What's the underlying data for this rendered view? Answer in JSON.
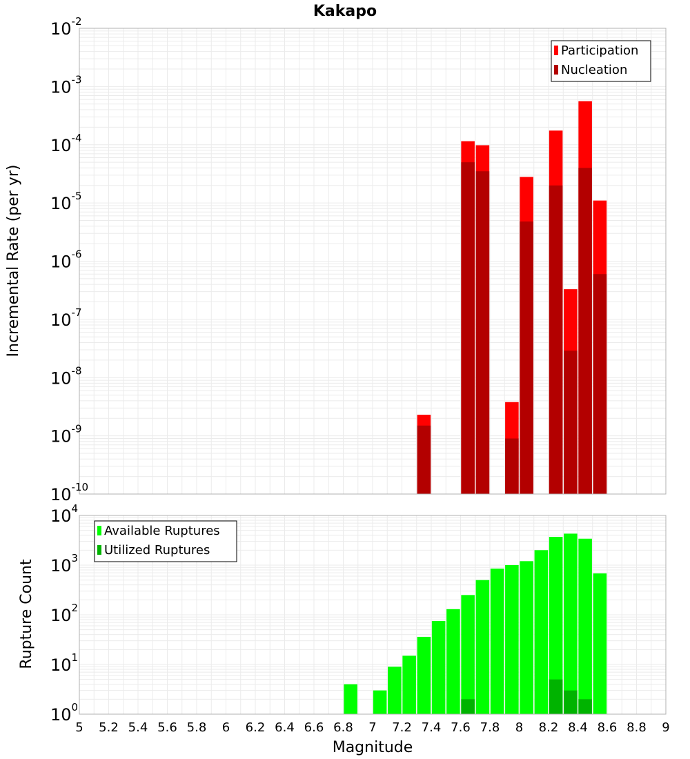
{
  "chart_data": [
    {
      "type": "bar",
      "title": "Kakapo",
      "xlabel": "",
      "ylabel": "Incremental Rate (per yr)",
      "yscale": "log",
      "ylim_exponents": [
        -10,
        -2
      ],
      "xlim": [
        5,
        9
      ],
      "grid": true,
      "legend_position": "top-right",
      "x": [
        7.35,
        7.65,
        7.75,
        7.95,
        8.05,
        8.25,
        8.35,
        8.45,
        8.55
      ],
      "series": [
        {
          "name": "Participation",
          "color": "#ff0000",
          "values": [
            2.3e-09,
            0.000115,
            9.8e-05,
            3.8e-09,
            2.8e-05,
            0.000175,
            3.3e-07,
            0.00056,
            1.1e-05
          ]
        },
        {
          "name": "Nucleation",
          "color": "#b30000",
          "values": [
            1.5e-09,
            5e-05,
            3.5e-05,
            9e-10,
            4.8e-06,
            2e-05,
            2.9e-08,
            4e-05,
            6e-07
          ]
        }
      ]
    },
    {
      "type": "bar",
      "title": "",
      "xlabel": "Magnitude",
      "ylabel": "Rupture Count",
      "yscale": "log",
      "ylim_exponents": [
        0,
        4
      ],
      "xlim": [
        5,
        9
      ],
      "grid": true,
      "legend_position": "top-left",
      "x": [
        6.85,
        6.95,
        7.05,
        7.15,
        7.25,
        7.35,
        7.45,
        7.55,
        7.65,
        7.75,
        7.85,
        7.95,
        8.05,
        8.15,
        8.25,
        8.35,
        8.45,
        8.55
      ],
      "series": [
        {
          "name": "Available Ruptures",
          "color": "#00ff00",
          "values": [
            4,
            1,
            3,
            9,
            15,
            36,
            75,
            130,
            250,
            500,
            850,
            1000,
            1200,
            2000,
            3700,
            4300,
            3400,
            680
          ]
        },
        {
          "name": "Utilized Ruptures",
          "color": "#00b300",
          "values": [
            0,
            0,
            0,
            0,
            0,
            1,
            0,
            0,
            2,
            1,
            0,
            1,
            1,
            0,
            5,
            3,
            2,
            1
          ]
        }
      ]
    }
  ],
  "x_ticks": [
    "5",
    "5.2",
    "5.4",
    "5.6",
    "5.8",
    "6",
    "6.2",
    "6.4",
    "6.6",
    "6.8",
    "7",
    "7.2",
    "7.4",
    "7.6",
    "7.8",
    "8",
    "8.2",
    "8.4",
    "8.6",
    "8.8",
    "9"
  ],
  "colors": {
    "grid": "#ebebeb",
    "frame": "#b0b0b0"
  }
}
